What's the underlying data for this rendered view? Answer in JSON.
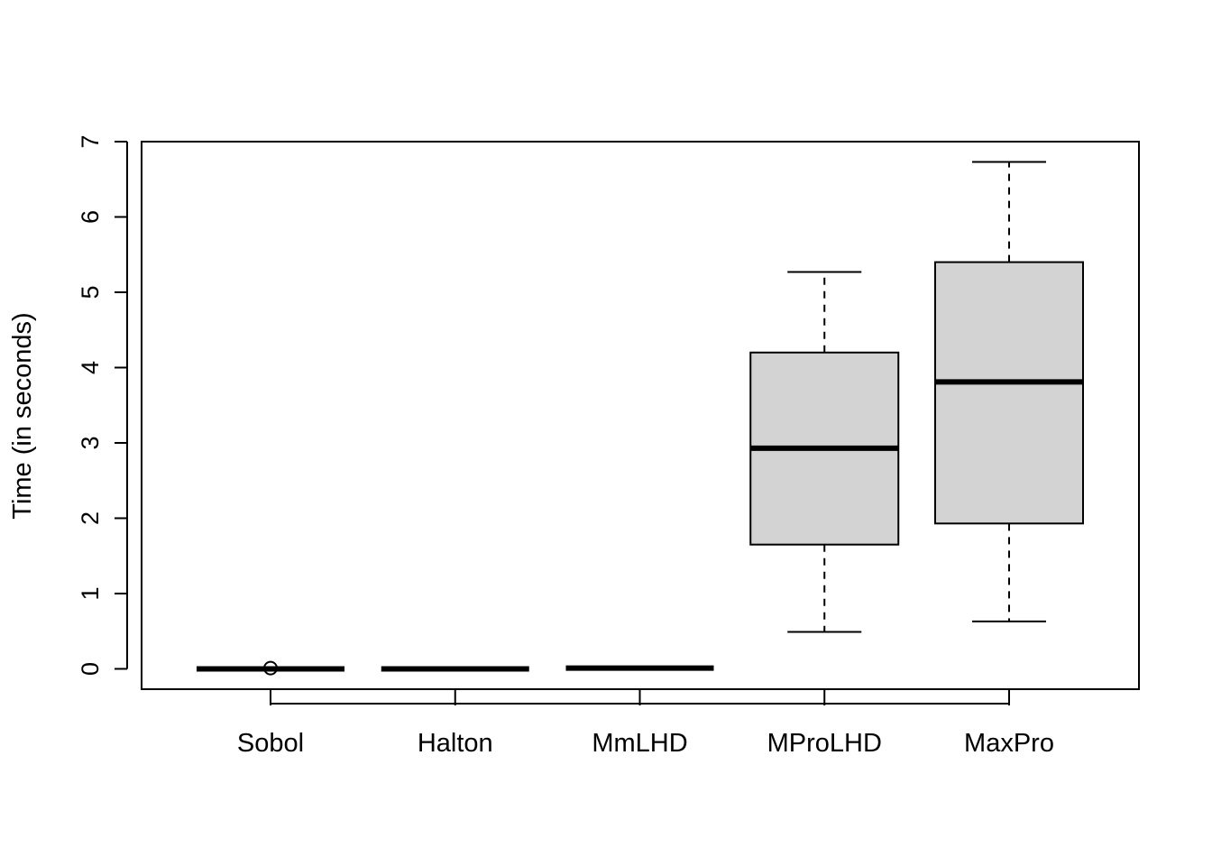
{
  "chart_data": {
    "type": "boxplot",
    "title": "",
    "xlabel": "",
    "ylabel": "Time (in seconds)",
    "ylim": [
      -0.27,
      7
    ],
    "yticks": [
      0,
      1,
      2,
      3,
      4,
      5,
      6,
      7
    ],
    "categories": [
      "Sobol",
      "Halton",
      "MmLHD",
      "MProLHD",
      "MaxPro"
    ],
    "box_fill": "#d3d3d3",
    "boxes": [
      {
        "name": "Sobol",
        "min": 0.0,
        "q1": 0.0,
        "median": 0.0,
        "q3": 0.0,
        "max": 0.0,
        "outliers": [
          0.01
        ]
      },
      {
        "name": "Halton",
        "min": 0.0,
        "q1": 0.0,
        "median": 0.0,
        "q3": 0.0,
        "max": 0.0,
        "outliers": []
      },
      {
        "name": "MmLHD",
        "min": 0.01,
        "q1": 0.01,
        "median": 0.01,
        "q3": 0.01,
        "max": 0.01,
        "outliers": []
      },
      {
        "name": "MProLHD",
        "min": 0.49,
        "q1": 1.65,
        "median": 2.93,
        "q3": 4.2,
        "max": 5.27,
        "outliers": []
      },
      {
        "name": "MaxPro",
        "min": 0.63,
        "q1": 1.93,
        "median": 3.81,
        "q3": 5.4,
        "max": 6.73,
        "outliers": []
      }
    ],
    "grid": false,
    "legend": "none"
  }
}
